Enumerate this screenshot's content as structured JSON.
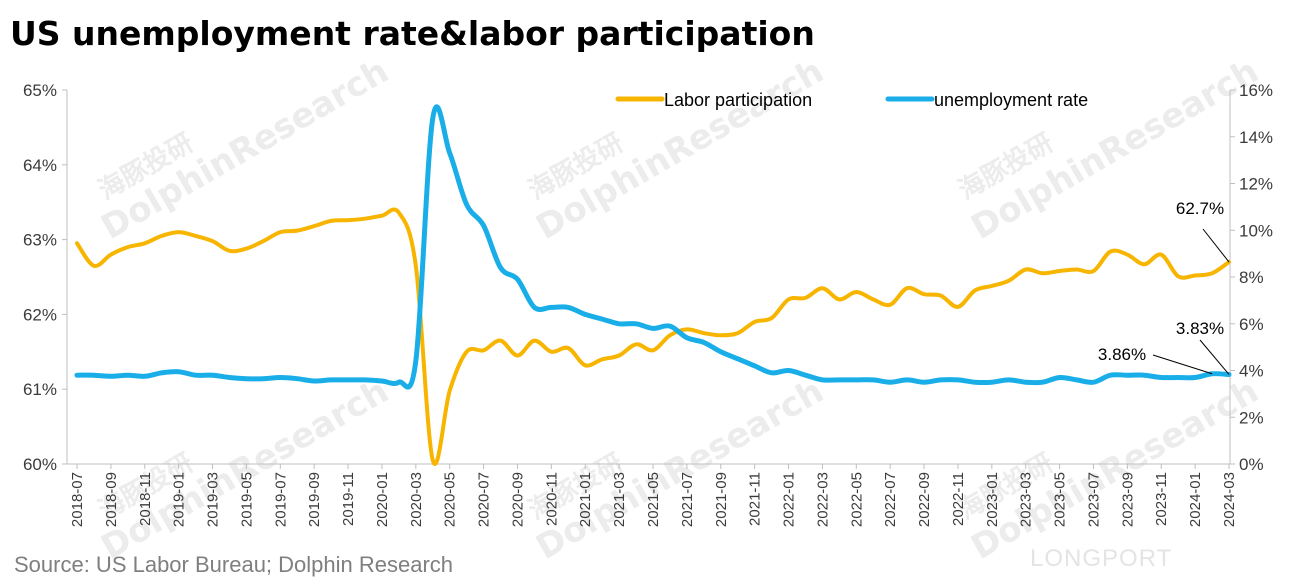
{
  "title": "US unemployment rate&labor participation",
  "source": "Source: US Labor Bureau; Dolphin Research",
  "watermarks": {
    "brand_cn": "海豚投研",
    "brand_en": "DolphinResearch",
    "longport": "LONGPORT"
  },
  "colors": {
    "labor": "#f7b500",
    "unemployment": "#1aaee8",
    "axis": "#bfbfbf"
  },
  "chart_data": {
    "type": "line",
    "title": "US unemployment rate&labor participation",
    "x": [
      "2018-07",
      "2018-08",
      "2018-09",
      "2018-10",
      "2018-11",
      "2018-12",
      "2019-01",
      "2019-02",
      "2019-03",
      "2019-04",
      "2019-05",
      "2019-06",
      "2019-07",
      "2019-08",
      "2019-09",
      "2019-10",
      "2019-11",
      "2019-12",
      "2020-01",
      "2020-02",
      "2020-03",
      "2020-04",
      "2020-05",
      "2020-06",
      "2020-07",
      "2020-08",
      "2020-09",
      "2020-10",
      "2020-11",
      "2020-12",
      "2021-01",
      "2021-02",
      "2021-03",
      "2021-04",
      "2021-05",
      "2021-06",
      "2021-07",
      "2021-08",
      "2021-09",
      "2021-10",
      "2021-11",
      "2021-12",
      "2022-01",
      "2022-02",
      "2022-03",
      "2022-04",
      "2022-05",
      "2022-06",
      "2022-07",
      "2022-08",
      "2022-09",
      "2022-10",
      "2022-11",
      "2022-12",
      "2023-01",
      "2023-02",
      "2023-03",
      "2023-04",
      "2023-05",
      "2023-06",
      "2023-07",
      "2023-08",
      "2023-09",
      "2023-10",
      "2023-11",
      "2023-12",
      "2024-01",
      "2024-02",
      "2024-03"
    ],
    "x_tick_labels": [
      "2018-07",
      "2018-09",
      "2018-11",
      "2019-01",
      "2019-03",
      "2019-05",
      "2019-07",
      "2019-09",
      "2019-11",
      "2020-01",
      "2020-03",
      "2020-05",
      "2020-07",
      "2020-09",
      "2020-11",
      "2021-01",
      "2021-03",
      "2021-05",
      "2021-07",
      "2021-09",
      "2021-11",
      "2022-01",
      "2022-03",
      "2022-05",
      "2022-07",
      "2022-09",
      "2022-11",
      "2023-01",
      "2023-03",
      "2023-05",
      "2023-07",
      "2023-09",
      "2023-11",
      "2024-01",
      "2024-03"
    ],
    "series": [
      {
        "name": "Labor participation",
        "axis": "left",
        "color": "#f7b500",
        "values": [
          62.95,
          62.65,
          62.8,
          62.9,
          62.95,
          63.05,
          63.1,
          63.05,
          62.98,
          62.85,
          62.88,
          62.98,
          63.1,
          63.12,
          63.18,
          63.25,
          63.26,
          63.28,
          63.32,
          63.36,
          62.65,
          60.05,
          60.98,
          61.5,
          61.52,
          61.65,
          61.45,
          61.65,
          61.5,
          61.55,
          61.32,
          61.4,
          61.45,
          61.6,
          61.52,
          61.72,
          61.8,
          61.75,
          61.72,
          61.75,
          61.9,
          61.95,
          62.2,
          62.22,
          62.35,
          62.2,
          62.3,
          62.2,
          62.13,
          62.35,
          62.27,
          62.25,
          62.1,
          62.32,
          62.38,
          62.45,
          62.6,
          62.55,
          62.58,
          62.6,
          62.58,
          62.84,
          62.8,
          62.67,
          62.8,
          62.51,
          62.52,
          62.55,
          62.7
        ]
      },
      {
        "name": "unemployment rate",
        "axis": "right",
        "color": "#1aaee8",
        "values": [
          3.8,
          3.8,
          3.75,
          3.8,
          3.75,
          3.9,
          3.95,
          3.8,
          3.8,
          3.7,
          3.65,
          3.65,
          3.7,
          3.65,
          3.55,
          3.6,
          3.6,
          3.6,
          3.55,
          3.5,
          4.4,
          14.8,
          13.3,
          11.1,
          10.2,
          8.4,
          7.9,
          6.7,
          6.7,
          6.7,
          6.4,
          6.2,
          6.0,
          6.0,
          5.8,
          5.9,
          5.4,
          5.2,
          4.8,
          4.5,
          4.2,
          3.9,
          4.0,
          3.8,
          3.6,
          3.6,
          3.6,
          3.6,
          3.5,
          3.6,
          3.5,
          3.6,
          3.6,
          3.5,
          3.5,
          3.6,
          3.5,
          3.5,
          3.7,
          3.6,
          3.5,
          3.8,
          3.8,
          3.8,
          3.7,
          3.7,
          3.7,
          3.86,
          3.83
        ]
      }
    ],
    "left_axis": {
      "ylim": [
        60,
        65
      ],
      "ticks": [
        "60%",
        "61%",
        "62%",
        "63%",
        "64%",
        "65%"
      ]
    },
    "right_axis": {
      "ylim": [
        0,
        16
      ],
      "ticks": [
        "0%",
        "2%",
        "4%",
        "6%",
        "8%",
        "10%",
        "12%",
        "14%",
        "16%"
      ]
    },
    "legend": {
      "placement": "top-center",
      "entries": [
        "Labor participation",
        "unemployment rate"
      ]
    },
    "annotations": [
      {
        "text": "62.7%",
        "series": "Labor participation",
        "x": "2024-03"
      },
      {
        "text": "3.86%",
        "series": "unemployment rate",
        "x": "2024-02"
      },
      {
        "text": "3.83%",
        "series": "unemployment rate",
        "x": "2024-03"
      }
    ],
    "grid": false
  }
}
